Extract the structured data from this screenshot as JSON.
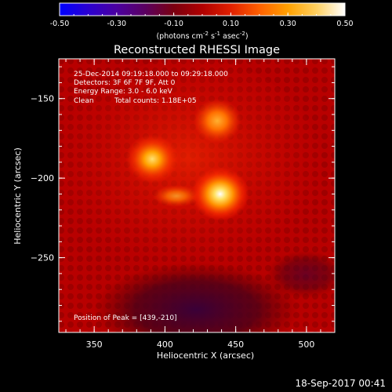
{
  "colorbar": {
    "ticks": [
      "-0.50",
      "-0.30",
      "-0.10",
      "0.10",
      "0.30",
      "0.50"
    ],
    "unit_label_parts": [
      "(photons cm",
      "-2",
      " s",
      "-1",
      " asec",
      "-2",
      ")"
    ],
    "colors": [
      "#0000ff",
      "#2a00d0",
      "#4b00a0",
      "#5a0060",
      "#7a0010",
      "#b00000",
      "#e02000",
      "#ff6000",
      "#ffa000",
      "#ffd060",
      "#ffffff"
    ]
  },
  "title": "Reconstructed RHESSI Image",
  "info": {
    "line1": "25-Dec-2014 09:19:18.000 to 09:29:18.000",
    "line2": "Detectors: 3F 6F 7F 9F, Att 0",
    "line3": "Energy Range: 3.0 - 6.0 keV",
    "line4_a": "Clean",
    "line4_b": "Total counts: 1.18E+05"
  },
  "peak_text": "Position of Peak = [439,-210]",
  "axes": {
    "xlabel": "Heliocentric X (arcsec)",
    "ylabel": "Heliocentric Y (arcsec)",
    "xticks": [
      "350",
      "400",
      "450",
      "500"
    ],
    "yticks": [
      "-150",
      "-200",
      "-250"
    ]
  },
  "footer_timestamp": "18-Sep-2017 00:41",
  "chart_data": {
    "type": "heatmap",
    "xlim": [
      325,
      520
    ],
    "ylim": [
      -297,
      -125
    ],
    "clim": [
      -0.5,
      0.5
    ],
    "sources": [
      {
        "x": 439,
        "y": -210,
        "peak": 0.5
      },
      {
        "x": 391,
        "y": -188,
        "peak": 0.42
      },
      {
        "x": 437,
        "y": -164,
        "peak": 0.33
      }
    ]
  }
}
